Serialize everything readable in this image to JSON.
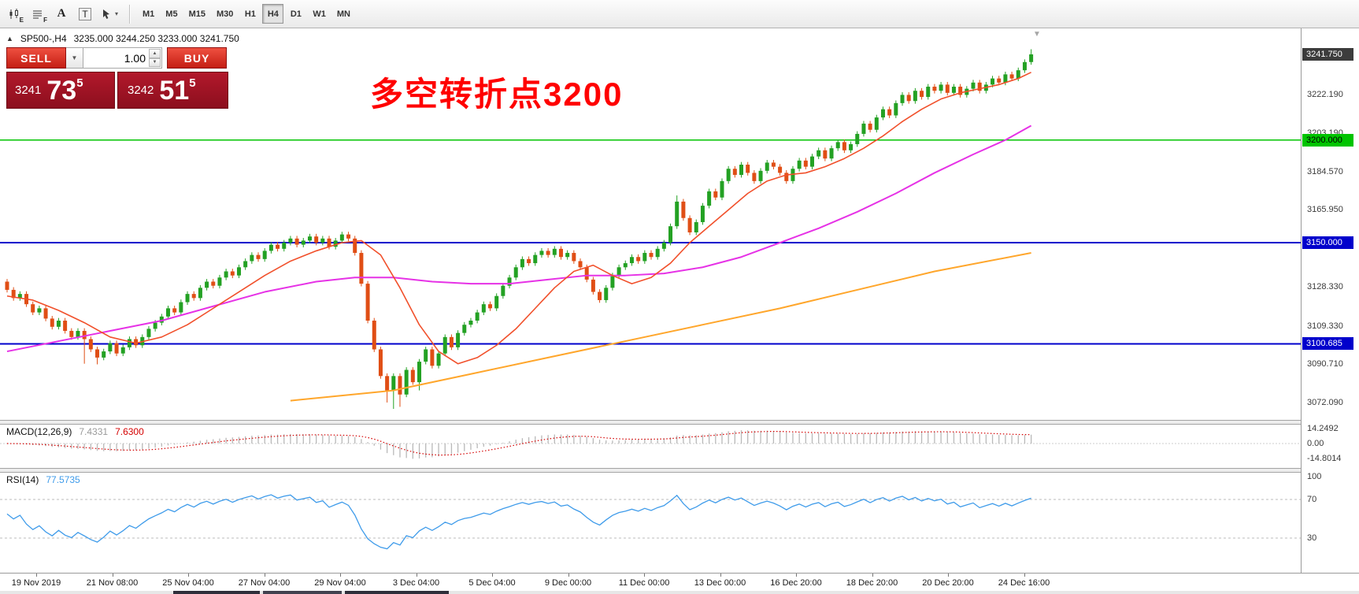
{
  "glyphs": {
    "header_arrow": "▲",
    "caret_down": "▼",
    "spin_up": "▲",
    "spin_down": "▼",
    "tool_caret": "▾",
    "end_marker": "▼"
  },
  "toolbar": {
    "tools": [
      {
        "name": "pattern",
        "badge": "E"
      },
      {
        "name": "grid",
        "badge": "F"
      },
      {
        "name": "text",
        "label": "A"
      },
      {
        "name": "label",
        "label": "T"
      },
      {
        "name": "cursor",
        "caret": "▾"
      }
    ],
    "timeframes": [
      {
        "label": "M1",
        "active": false
      },
      {
        "label": "M5",
        "active": false
      },
      {
        "label": "M15",
        "active": false
      },
      {
        "label": "M30",
        "active": false
      },
      {
        "label": "H1",
        "active": false
      },
      {
        "label": "H4",
        "active": true
      },
      {
        "label": "D1",
        "active": false
      },
      {
        "label": "W1",
        "active": false
      },
      {
        "label": "MN",
        "active": false
      }
    ]
  },
  "chart": {
    "symbol": "SP500-,H4",
    "ohlc": "3235.000 3244.250 3233.000 3241.750"
  },
  "trade_panel": {
    "sell_label": "SELL",
    "buy_label": "BUY",
    "volume": "1.00",
    "bid_small": "3241",
    "bid_big": "73",
    "bid_sup": "5",
    "ask_small": "3242",
    "ask_big": "51",
    "ask_sup": "5"
  },
  "annotation": {
    "text": "多空转折点3200"
  },
  "macd_panel": {
    "title": "MACD(12,26,9)",
    "value_main": "7.4331",
    "value_signal": "7.6300",
    "axis": [
      {
        "label": "14.2492",
        "value": 14.2492
      },
      {
        "label": "0.00",
        "value": 0
      },
      {
        "label": "-14.8014",
        "value": -14.8014
      }
    ]
  },
  "rsi_panel": {
    "title": "RSI(14)",
    "value": "77.5735",
    "axis": [
      {
        "label": "100",
        "value": 100
      },
      {
        "label": "70",
        "value": 70
      },
      {
        "label": "30",
        "value": 30
      }
    ],
    "levels": [
      70,
      30
    ]
  },
  "time_axis": [
    "19 Nov 2019",
    "21 Nov 08:00",
    "25 Nov 04:00",
    "27 Nov 04:00",
    "29 Nov 04:00",
    "3 Dec 04:00",
    "5 Dec 04:00",
    "9 Dec 00:00",
    "11 Dec 00:00",
    "13 Dec 00:00",
    "16 Dec 20:00",
    "18 Dec 20:00",
    "20 Dec 20:00",
    "24 Dec 16:00"
  ],
  "colors": {
    "up": "#23a123",
    "down": "#e04e15",
    "rsi_line": "#3e9bea",
    "macd_bar": "#b9b9b9",
    "macd_signal": "#d40000"
  },
  "chart_data": {
    "type": "candlestick",
    "symbol": "SP500-",
    "timeframe": "H4",
    "first_open": 3131,
    "closes": [
      3127,
      3123,
      3125,
      3120,
      3116,
      3118,
      3113,
      3109,
      3112,
      3107,
      3104,
      3107,
      3103,
      3098,
      3094,
      3097,
      3101,
      3096,
      3099,
      3103,
      3100,
      3104,
      3108,
      3111,
      3114,
      3118,
      3116,
      3121,
      3125,
      3123,
      3128,
      3131,
      3129,
      3133,
      3136,
      3134,
      3138,
      3141,
      3144,
      3142,
      3146,
      3149,
      3147,
      3150,
      3152,
      3149,
      3151,
      3153,
      3150,
      3152,
      3148,
      3151,
      3154,
      3152,
      3145,
      3130,
      3112,
      3098,
      3085,
      3078,
      3085,
      3076,
      3088,
      3082,
      3092,
      3098,
      3090,
      3096,
      3104,
      3099,
      3106,
      3110,
      3112,
      3116,
      3120,
      3118,
      3124,
      3129,
      3133,
      3138,
      3142,
      3140,
      3144,
      3146,
      3144,
      3147,
      3143,
      3145,
      3141,
      3138,
      3132,
      3126,
      3122,
      3128,
      3134,
      3138,
      3140,
      3143,
      3141,
      3145,
      3143,
      3147,
      3150,
      3158,
      3170,
      3162,
      3155,
      3160,
      3168,
      3175,
      3172,
      3180,
      3186,
      3183,
      3188,
      3184,
      3180,
      3185,
      3189,
      3187,
      3184,
      3180,
      3186,
      3190,
      3187,
      3192,
      3195,
      3191,
      3196,
      3199,
      3195,
      3198,
      3203,
      3208,
      3205,
      3211,
      3215,
      3212,
      3218,
      3222,
      3219,
      3224,
      3221,
      3226,
      3224,
      3227,
      3223,
      3226,
      3222,
      3225,
      3228,
      3224,
      3227,
      3230,
      3228,
      3232,
      3230,
      3234,
      3238,
      3241.75
    ],
    "wick_default": 1.3,
    "wick_overrides": {
      "12": {
        "low": 3091
      },
      "14": {
        "low": 3090.7
      },
      "59": {
        "low": 3072.1
      },
      "60": {
        "low": 3069
      },
      "61": {
        "low": 3070
      },
      "64": {
        "low": 3078
      },
      "104": {
        "high": 3173
      },
      "159": {
        "high": 3244.25
      }
    },
    "levels": [
      {
        "price": 3200.0,
        "label": "3200.000",
        "color": "#00c400",
        "width": 1.5,
        "tag_bg": "#00c400",
        "tag_fg": "#000000"
      },
      {
        "price": 3150.0,
        "label": "3150.000",
        "color": "#0000cc",
        "width": 2,
        "tag_bg": "#0000cc",
        "tag_fg": "#ffffff"
      },
      {
        "price": 3100.685,
        "label": "3100.685",
        "color": "#0000cc",
        "width": 2,
        "tag_bg": "#0000cc",
        "tag_fg": "#ffffff"
      }
    ],
    "current_price": {
      "price": 3241.75,
      "label": "3241.750",
      "tag_bg": "#3c3c3c",
      "tag_fg": "#ffffff"
    },
    "scale_ticks": [
      {
        "label": "3222.190",
        "price": 3222.19
      },
      {
        "label": "3203.190",
        "price": 3203.19
      },
      {
        "label": "3184.570",
        "price": 3184.57
      },
      {
        "label": "3165.950",
        "price": 3165.95
      },
      {
        "label": "3128.330",
        "price": 3128.33
      },
      {
        "label": "3109.330",
        "price": 3109.33
      },
      {
        "label": "3090.710",
        "price": 3090.71
      },
      {
        "label": "3072.090",
        "price": 3072.09
      }
    ],
    "ma_fast": {
      "color": "#f1502b",
      "points": [
        [
          0,
          3124
        ],
        [
          4,
          3122
        ],
        [
          8,
          3117
        ],
        [
          12,
          3111
        ],
        [
          16,
          3104
        ],
        [
          20,
          3101
        ],
        [
          24,
          3104
        ],
        [
          28,
          3110
        ],
        [
          32,
          3118
        ],
        [
          36,
          3126
        ],
        [
          40,
          3134
        ],
        [
          44,
          3141
        ],
        [
          48,
          3146
        ],
        [
          52,
          3150
        ],
        [
          55,
          3151
        ],
        [
          58,
          3144
        ],
        [
          61,
          3128
        ],
        [
          64,
          3110
        ],
        [
          67,
          3097
        ],
        [
          70,
          3091
        ],
        [
          73,
          3094
        ],
        [
          76,
          3100
        ],
        [
          79,
          3108
        ],
        [
          82,
          3118
        ],
        [
          85,
          3128
        ],
        [
          88,
          3136
        ],
        [
          91,
          3139
        ],
        [
          94,
          3134
        ],
        [
          97,
          3130
        ],
        [
          100,
          3133
        ],
        [
          103,
          3140
        ],
        [
          106,
          3150
        ],
        [
          109,
          3158
        ],
        [
          112,
          3166
        ],
        [
          115,
          3174
        ],
        [
          118,
          3180
        ],
        [
          121,
          3183
        ],
        [
          124,
          3184
        ],
        [
          127,
          3187
        ],
        [
          130,
          3191
        ],
        [
          133,
          3196
        ],
        [
          136,
          3202
        ],
        [
          139,
          3209
        ],
        [
          142,
          3215
        ],
        [
          145,
          3220
        ],
        [
          148,
          3223
        ],
        [
          151,
          3225
        ],
        [
          154,
          3227
        ],
        [
          157,
          3230
        ],
        [
          159,
          3233
        ]
      ]
    },
    "ma_mid": {
      "color": "#e632e6",
      "points": [
        [
          0,
          3097
        ],
        [
          8,
          3102
        ],
        [
          16,
          3107
        ],
        [
          24,
          3112
        ],
        [
          32,
          3119
        ],
        [
          40,
          3126
        ],
        [
          48,
          3131
        ],
        [
          54,
          3133
        ],
        [
          60,
          3133
        ],
        [
          66,
          3131
        ],
        [
          72,
          3130
        ],
        [
          78,
          3130
        ],
        [
          84,
          3132
        ],
        [
          90,
          3134
        ],
        [
          96,
          3134
        ],
        [
          102,
          3135
        ],
        [
          108,
          3138
        ],
        [
          114,
          3143
        ],
        [
          120,
          3150
        ],
        [
          126,
          3157
        ],
        [
          132,
          3165
        ],
        [
          138,
          3174
        ],
        [
          144,
          3184
        ],
        [
          150,
          3193
        ],
        [
          155,
          3200
        ],
        [
          159,
          3207
        ]
      ]
    },
    "ma_slow": {
      "color": "#ffa62b",
      "points": [
        [
          44,
          3073
        ],
        [
          60,
          3078
        ],
        [
          72,
          3086
        ],
        [
          84,
          3094
        ],
        [
          96,
          3102
        ],
        [
          108,
          3110
        ],
        [
          120,
          3118
        ],
        [
          132,
          3127
        ],
        [
          144,
          3136
        ],
        [
          159,
          3145
        ]
      ]
    }
  }
}
